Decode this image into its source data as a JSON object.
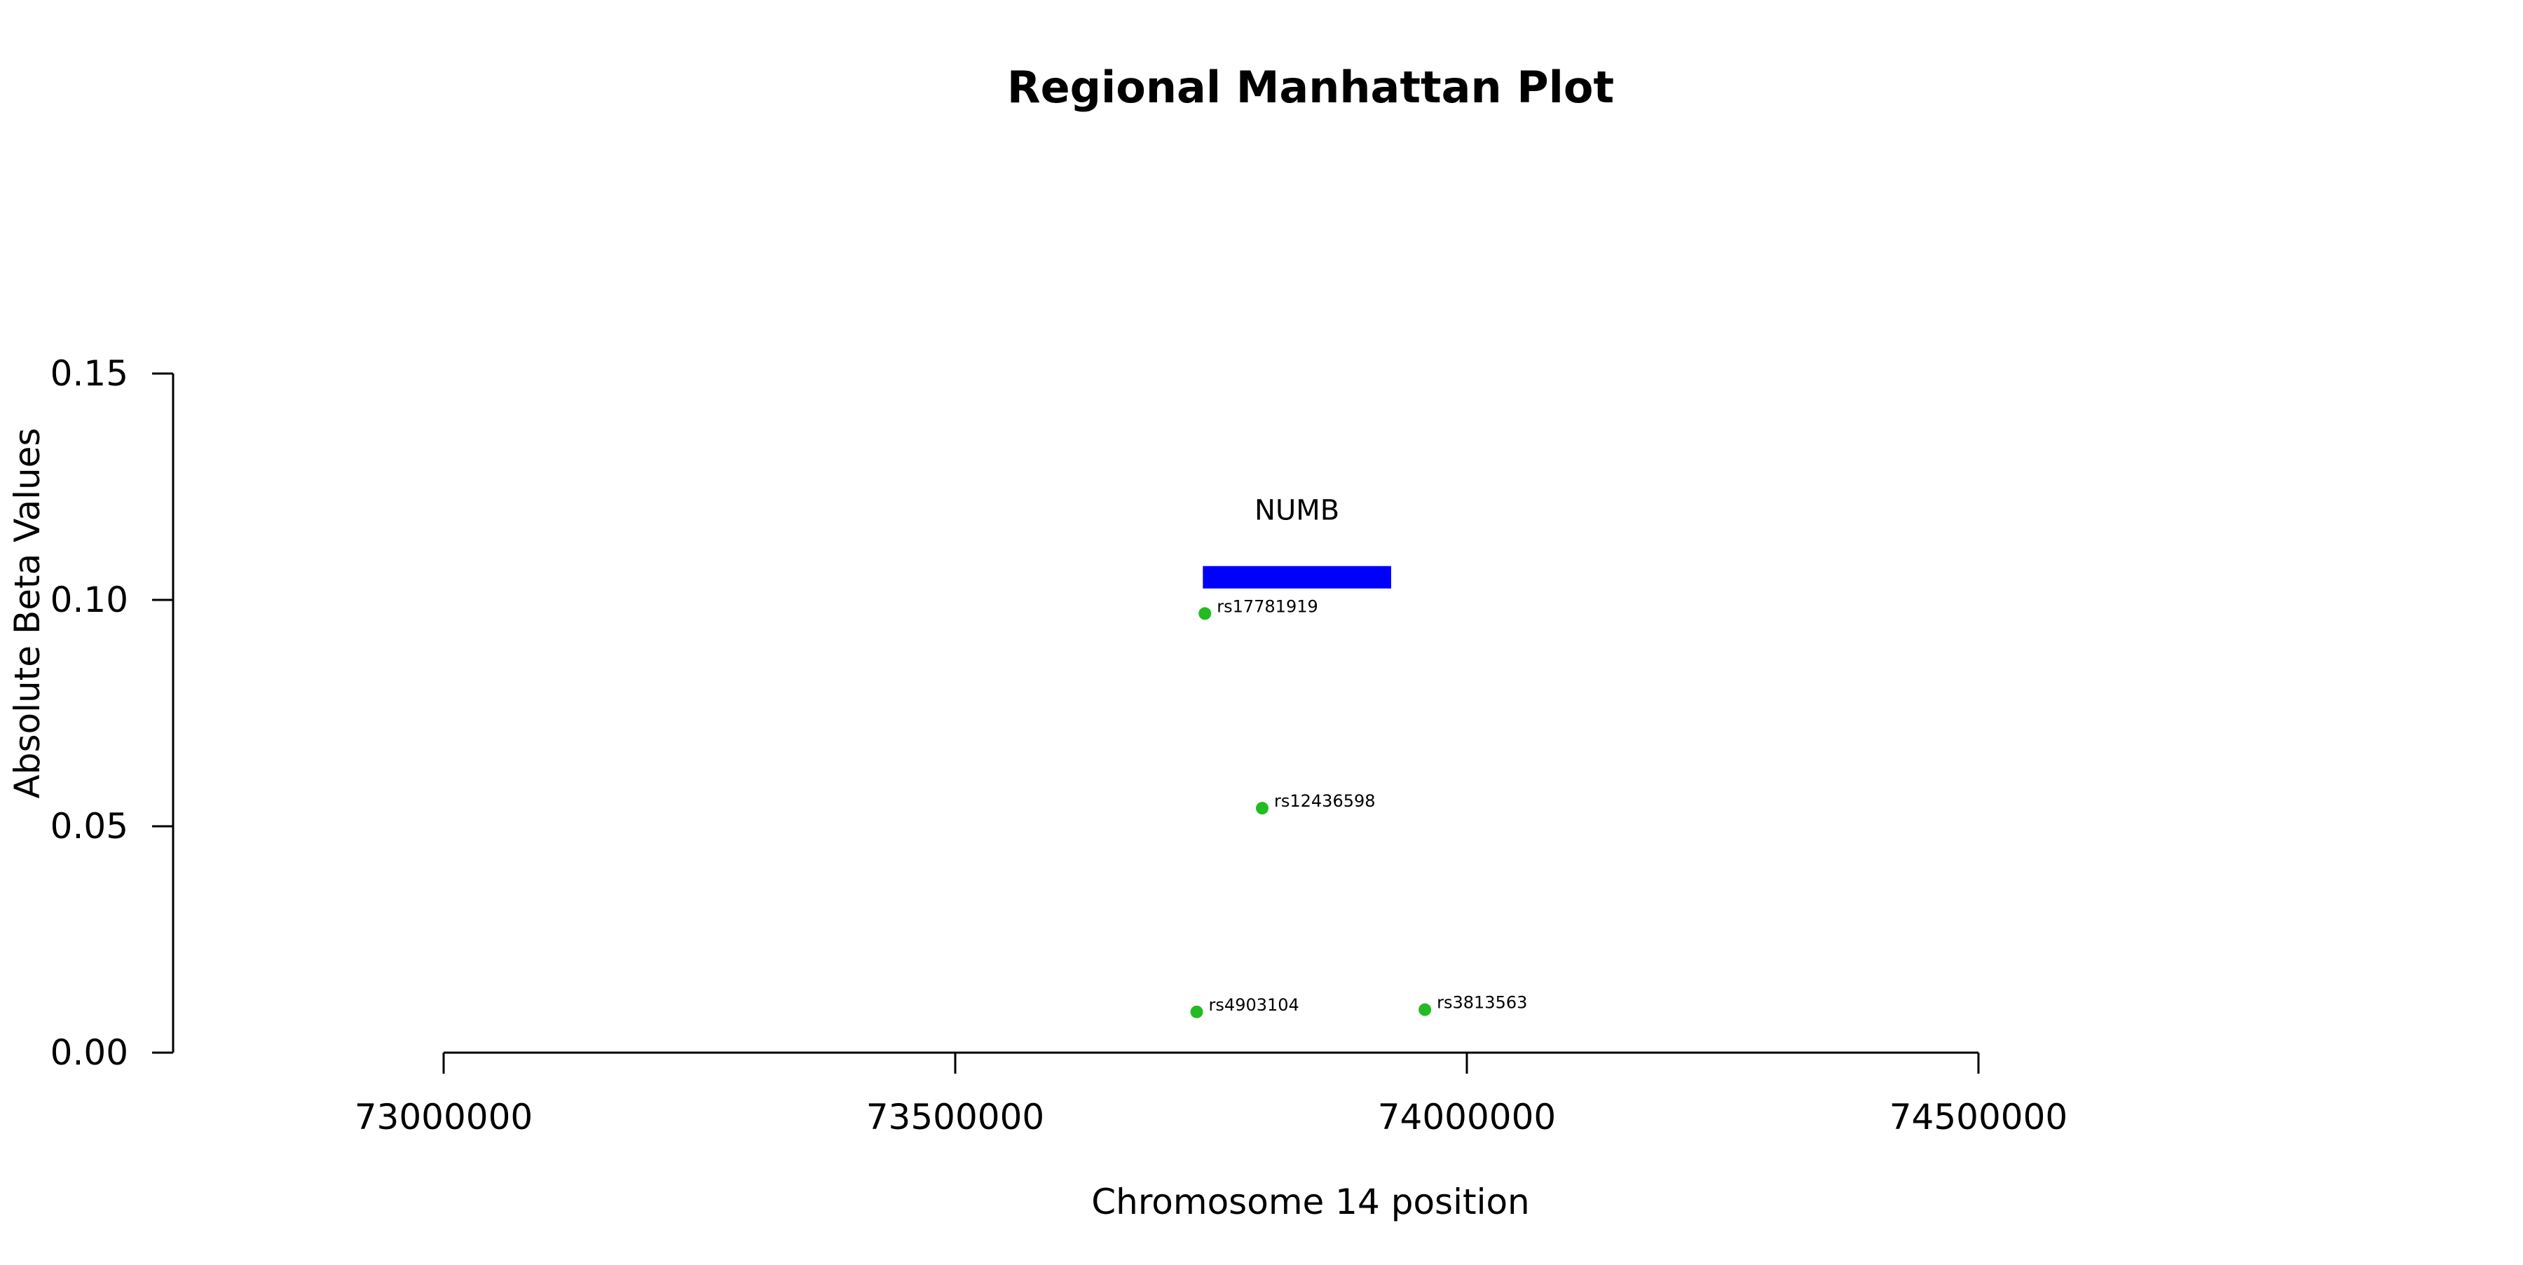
{
  "chart_data": {
    "type": "scatter",
    "title": "Regional Manhattan Plot",
    "xlabel": "Chromosome 14 position",
    "ylabel": "Absolute Beta Values",
    "xlim": [
      73000000,
      74500000
    ],
    "ylim": [
      0,
      0.15
    ],
    "x_ticks": [
      73000000,
      73500000,
      74000000,
      74500000
    ],
    "x_tick_labels": [
      "73000000",
      "73500000",
      "74000000",
      "74500000"
    ],
    "y_ticks": [
      0,
      0.05,
      0.1,
      0.15
    ],
    "y_tick_labels": [
      "0.00",
      "0.05",
      "0.10",
      "0.15"
    ],
    "grid": false,
    "point_color": "#22bb22",
    "gene_color": "#0000ff",
    "genes": [
      {
        "name": "NUMB",
        "start": 73742000,
        "end": 73926000,
        "y": 0.105
      }
    ],
    "points": [
      {
        "label": "rs17781919",
        "x": 73744000,
        "y": 0.097
      },
      {
        "label": "rs12436598",
        "x": 73800000,
        "y": 0.054
      },
      {
        "label": "rs4903104",
        "x": 73736000,
        "y": 0.009
      },
      {
        "label": "rs3813563",
        "x": 73959000,
        "y": 0.0095
      }
    ]
  }
}
